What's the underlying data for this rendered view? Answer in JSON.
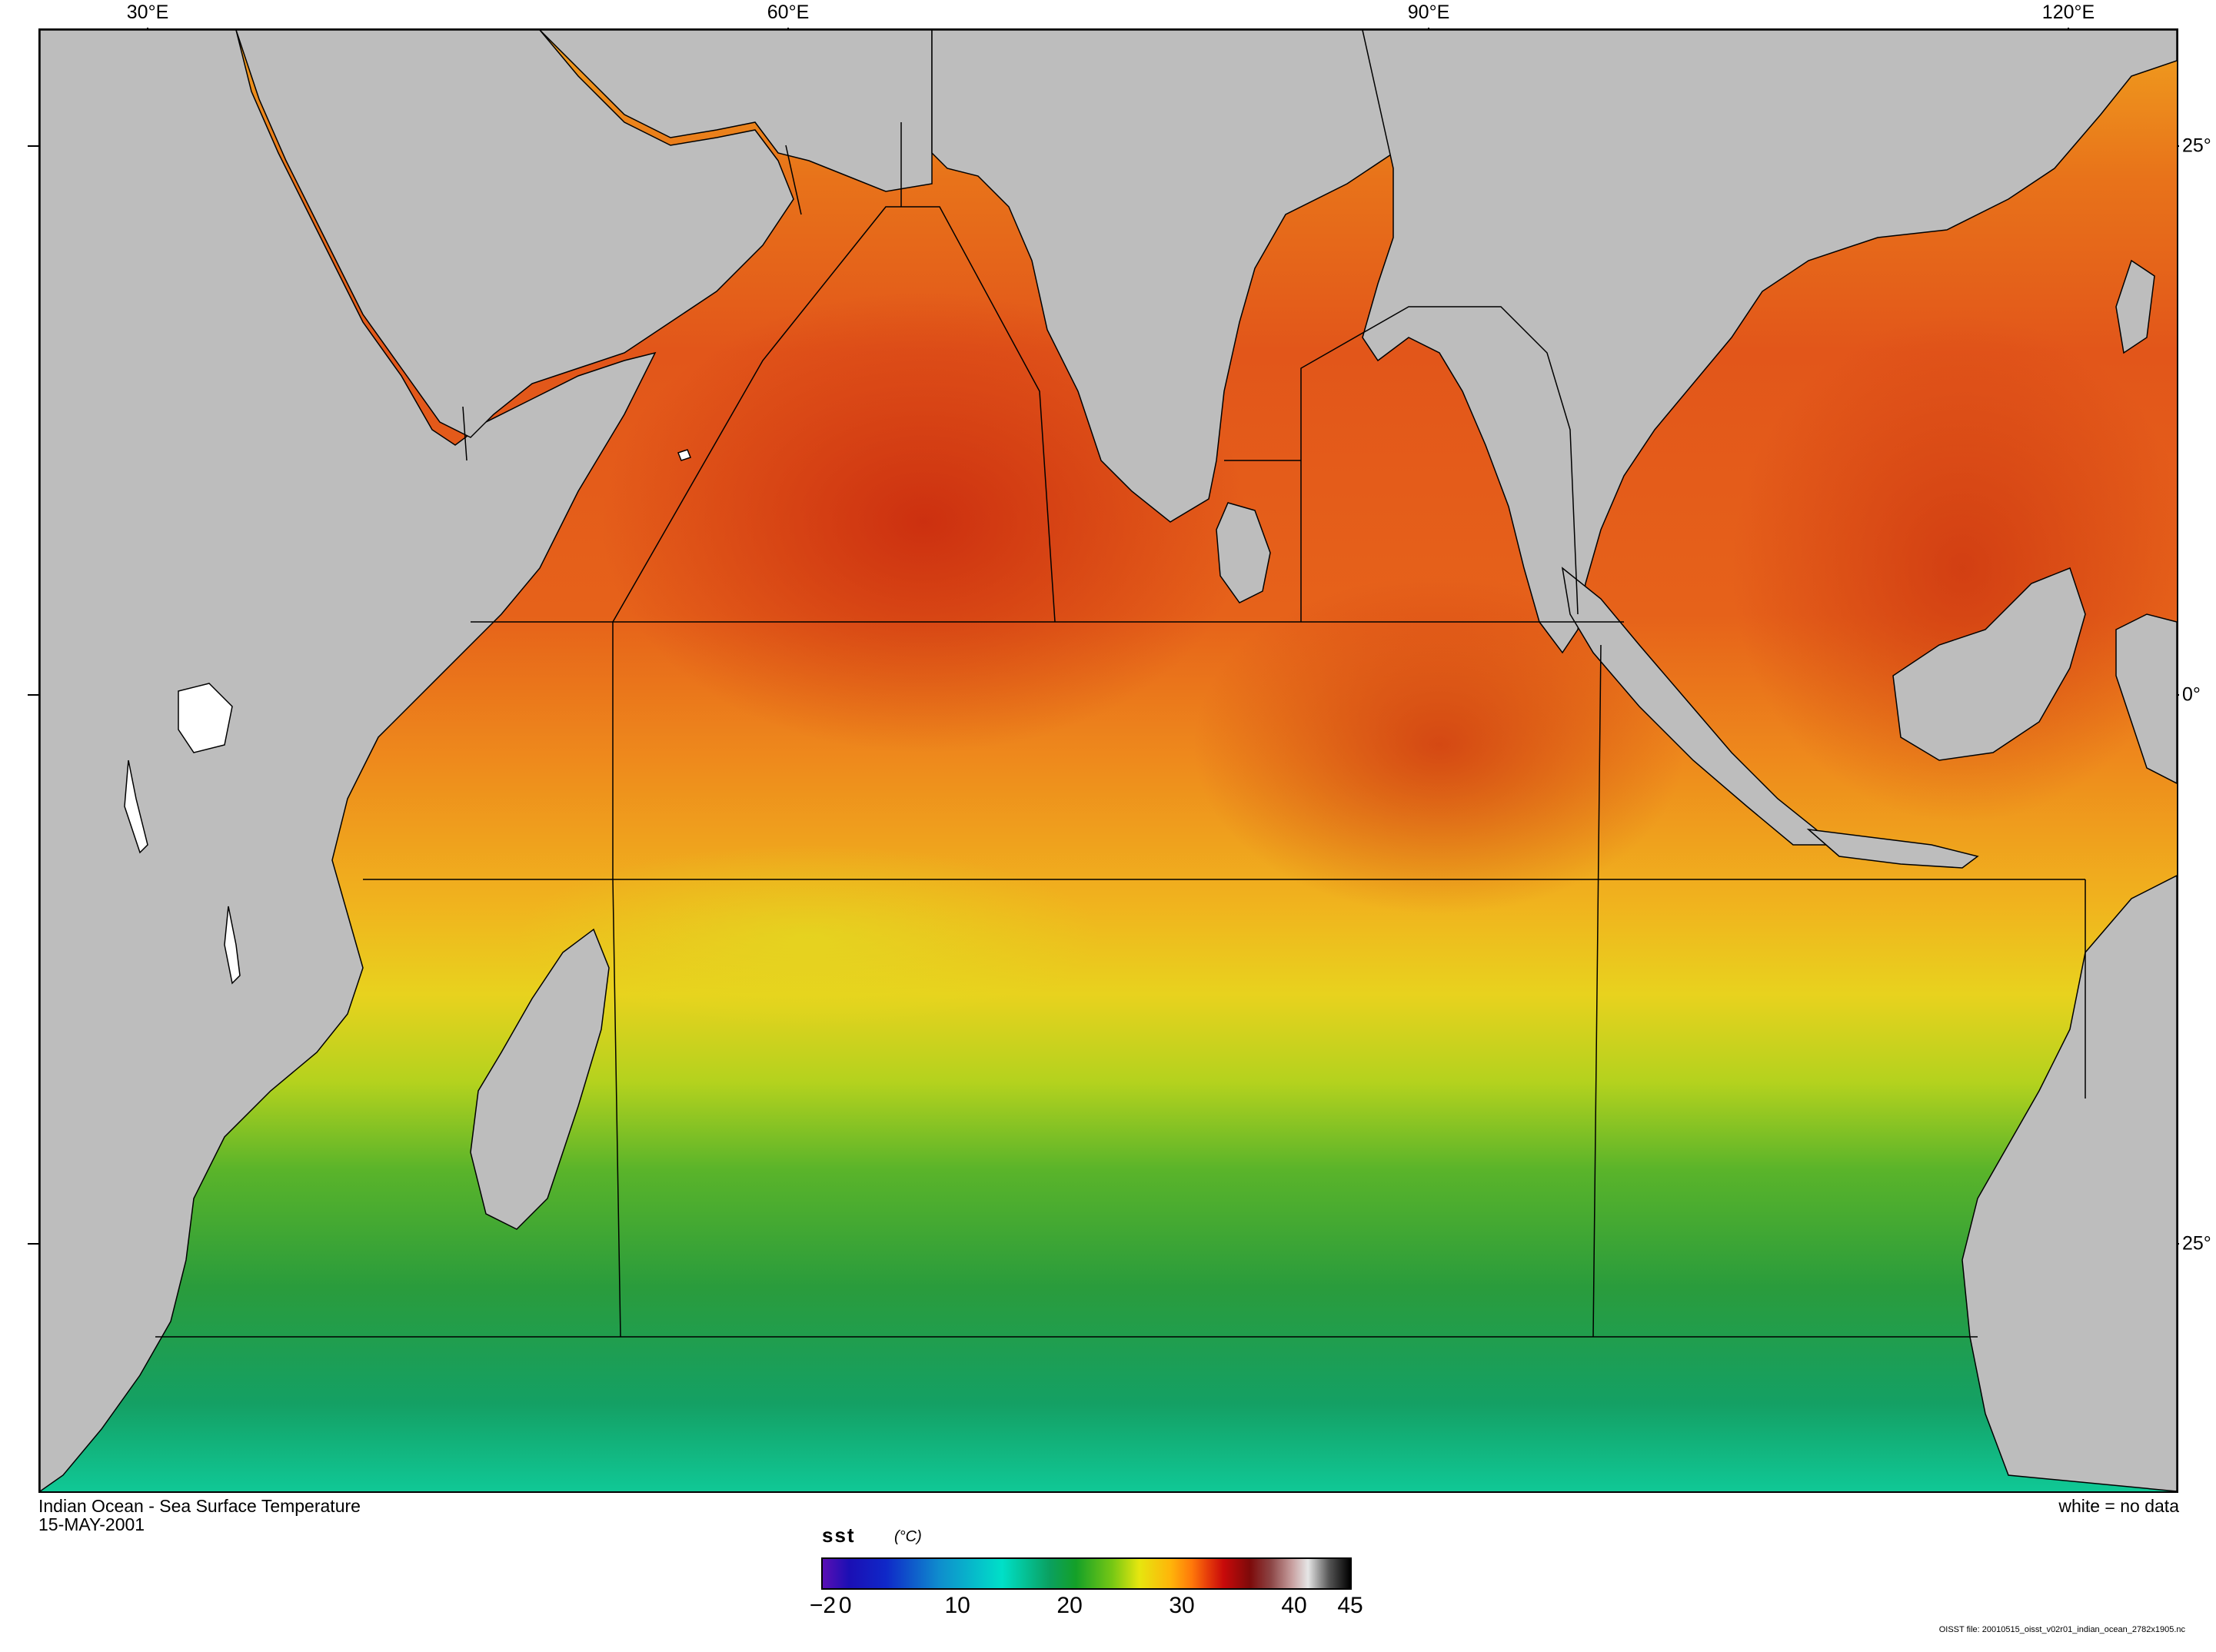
{
  "map": {
    "lon_labels": [
      "30°E",
      "60°E",
      "90°E",
      "120°E"
    ],
    "lat_labels": [
      "25°",
      "0°",
      "25°"
    ],
    "land_color": "#bdbdbd",
    "nodata_color": "#ffffff",
    "boundary_color": "#000000"
  },
  "caption": {
    "title": "Indian Ocean - Sea Surface Temperature",
    "date": "15-MAY-2001",
    "nodata_note": "white = no data"
  },
  "colorbar": {
    "variable": "sst",
    "unit": "(°C)",
    "range": [
      -2,
      45
    ],
    "labels": [
      "−2",
      "0",
      "10",
      "20",
      "30",
      "40",
      "45"
    ],
    "label_values": [
      -2,
      0,
      10,
      20,
      30,
      40,
      45
    ]
  },
  "footer": "OISST file: 20010515_oisst_v02r01_indian_ocean_2782x1905.nc"
}
